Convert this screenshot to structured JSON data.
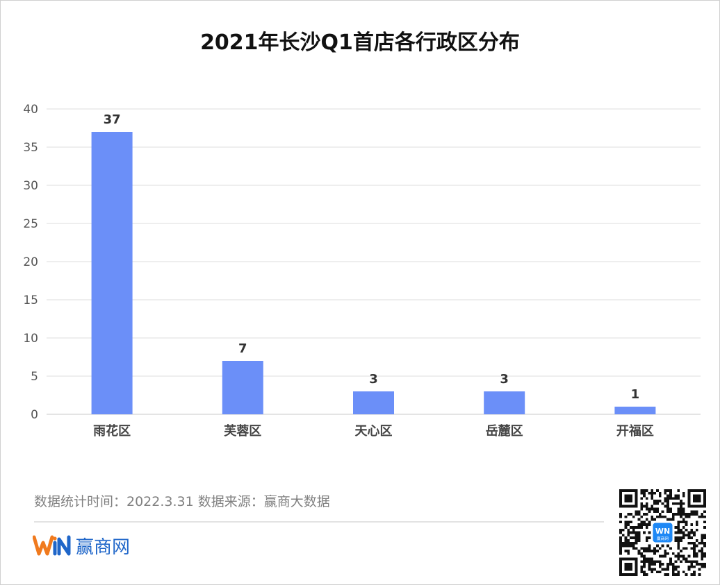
{
  "title": "2021年长沙Q1首店各行政区分布",
  "chart_data": {
    "type": "bar",
    "categories": [
      "雨花区",
      "芙蓉区",
      "天心区",
      "岳麓区",
      "开福区"
    ],
    "values": [
      37,
      7,
      3,
      3,
      1
    ],
    "data_labels": [
      "37",
      "7",
      "3",
      "3",
      "1"
    ],
    "ylim": [
      0,
      40
    ],
    "yticks": [
      0,
      5,
      10,
      15,
      20,
      25,
      30,
      35,
      40
    ],
    "ytick_labels": [
      "0",
      "5",
      "10",
      "15",
      "20",
      "25",
      "30",
      "35",
      "40"
    ],
    "grid": true,
    "bar_color": "#6b8ff8"
  },
  "footer": {
    "source_text": "数据统计时间：2022.3.31  数据来源：赢商大数据"
  },
  "brand": {
    "logo_text": "WN",
    "name": "赢商网",
    "logo_color": "#f07a1e",
    "name_color": "#1f66c9"
  },
  "qr": {
    "badge_text": "WN",
    "badge_subtext": "赢商网",
    "badge_color": "#1e88f5"
  }
}
